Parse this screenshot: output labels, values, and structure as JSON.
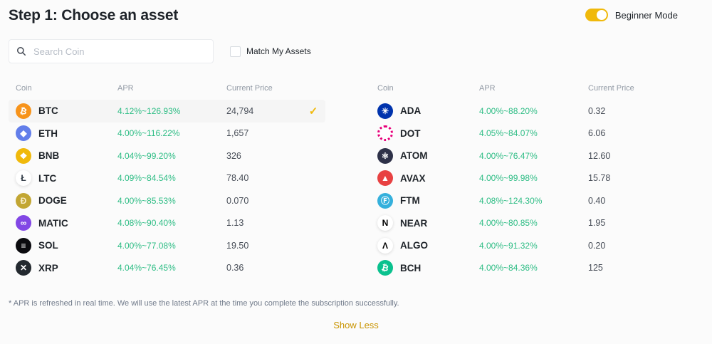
{
  "header": {
    "title": "Step 1: Choose an asset",
    "beginner_mode_label": "Beginner Mode",
    "beginner_mode_on": true
  },
  "controls": {
    "search_placeholder": "Search Coin",
    "match_my_assets_label": "Match My Assets",
    "match_my_assets_checked": false
  },
  "table": {
    "columns": [
      "Coin",
      "APR",
      "Current Price"
    ]
  },
  "left_coins": [
    {
      "symbol": "BTC",
      "apr": "4.12%~126.93%",
      "price": "24,794",
      "selected": true,
      "icon": {
        "name": "btc-icon",
        "bg": "#F7931A",
        "fg": "#ffffff",
        "glyph": "₿",
        "tilt": true
      }
    },
    {
      "symbol": "ETH",
      "apr": "4.00%~116.22%",
      "price": "1,657",
      "selected": false,
      "icon": {
        "name": "eth-icon",
        "bg": "#627EEA",
        "fg": "#ffffff",
        "glyph": "◆"
      }
    },
    {
      "symbol": "BNB",
      "apr": "4.04%~99.20%",
      "price": "326",
      "selected": false,
      "icon": {
        "name": "bnb-icon",
        "bg": "#F0B90B",
        "fg": "#ffffff",
        "glyph": "❖"
      }
    },
    {
      "symbol": "LTC",
      "apr": "4.09%~84.54%",
      "price": "78.40",
      "selected": false,
      "icon": {
        "name": "ltc-icon",
        "bg": "#ffffff",
        "fg": "#343D48",
        "glyph": "Ł",
        "light": true
      }
    },
    {
      "symbol": "DOGE",
      "apr": "4.00%~85.53%",
      "price": "0.070",
      "selected": false,
      "icon": {
        "name": "doge-icon",
        "bg": "#C2A633",
        "fg": "#F8EDCB",
        "glyph": "Ð"
      }
    },
    {
      "symbol": "MATIC",
      "apr": "4.08%~90.40%",
      "price": "1.13",
      "selected": false,
      "icon": {
        "name": "matic-icon",
        "bg": "#8247E5",
        "fg": "#ffffff",
        "glyph": "∞"
      }
    },
    {
      "symbol": "SOL",
      "apr": "4.00%~77.08%",
      "price": "19.50",
      "selected": false,
      "icon": {
        "name": "sol-icon",
        "bg": "#0B0B0F",
        "fg": "#ffffff",
        "glyph": "≡"
      }
    },
    {
      "symbol": "XRP",
      "apr": "4.04%~76.45%",
      "price": "0.36",
      "selected": false,
      "icon": {
        "name": "xrp-icon",
        "bg": "#23292F",
        "fg": "#ffffff",
        "glyph": "✕"
      }
    }
  ],
  "right_coins": [
    {
      "symbol": "ADA",
      "apr": "4.00%~88.20%",
      "price": "0.32",
      "selected": false,
      "icon": {
        "name": "ada-icon",
        "bg": "#0033AD",
        "fg": "#ffffff",
        "glyph": "✳"
      }
    },
    {
      "symbol": "DOT",
      "apr": "4.05%~84.07%",
      "price": "6.06",
      "selected": false,
      "icon": {
        "name": "dot-icon",
        "bg": "#ffffff",
        "fg": "#E6007A",
        "glyph": "",
        "ring": true
      }
    },
    {
      "symbol": "ATOM",
      "apr": "4.00%~76.47%",
      "price": "12.60",
      "selected": false,
      "icon": {
        "name": "atom-icon",
        "bg": "#2E3148",
        "fg": "#ffffff",
        "glyph": "⚛"
      }
    },
    {
      "symbol": "AVAX",
      "apr": "4.00%~99.98%",
      "price": "15.78",
      "selected": false,
      "icon": {
        "name": "avax-icon",
        "bg": "#E84142",
        "fg": "#ffffff",
        "glyph": "▲"
      }
    },
    {
      "symbol": "FTM",
      "apr": "4.08%~124.30%",
      "price": "0.40",
      "selected": false,
      "icon": {
        "name": "ftm-icon",
        "bg": "#35B0DC",
        "fg": "#ffffff",
        "glyph": "Ⓕ"
      }
    },
    {
      "symbol": "NEAR",
      "apr": "4.00%~80.85%",
      "price": "1.95",
      "selected": false,
      "icon": {
        "name": "near-icon",
        "bg": "#ffffff",
        "fg": "#000000",
        "glyph": "N",
        "light": true
      }
    },
    {
      "symbol": "ALGO",
      "apr": "4.00%~91.32%",
      "price": "0.20",
      "selected": false,
      "icon": {
        "name": "algo-icon",
        "bg": "#ffffff",
        "fg": "#000000",
        "glyph": "Λ",
        "light": true
      }
    },
    {
      "symbol": "BCH",
      "apr": "4.00%~84.36%",
      "price": "125",
      "selected": false,
      "icon": {
        "name": "bch-icon",
        "bg": "#0AC18E",
        "fg": "#ffffff",
        "glyph": "₿",
        "tilt": true
      }
    }
  ],
  "selected_row_check": "✓",
  "footer": {
    "note": "* APR is refreshed in real time. We will use the latest APR at the time you complete the subscription successfully.",
    "show_less_label": "Show Less"
  },
  "colors": {
    "accent_gold": "#F0B90B",
    "apr_green": "#2EBD85",
    "link_gold": "#C99400",
    "selected_row_bg": "#F5F5F5"
  }
}
